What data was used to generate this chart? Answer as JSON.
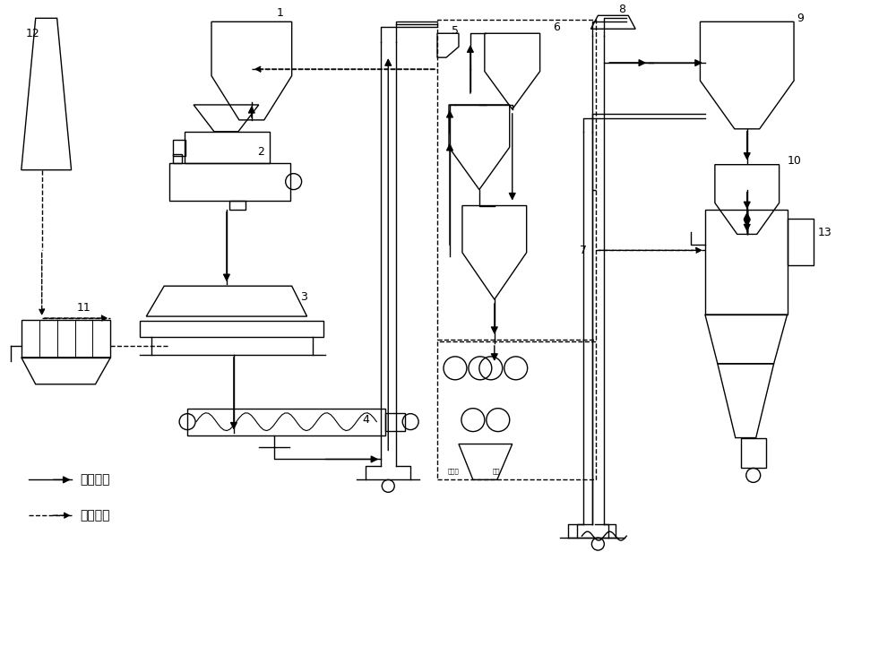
{
  "bg_color": "#ffffff",
  "line_color": "#000000",
  "figsize": [
    10.0,
    7.41
  ],
  "dpi": 100,
  "legend": {
    "material_flow": "物料流程",
    "gas_flow": "气体流程"
  }
}
